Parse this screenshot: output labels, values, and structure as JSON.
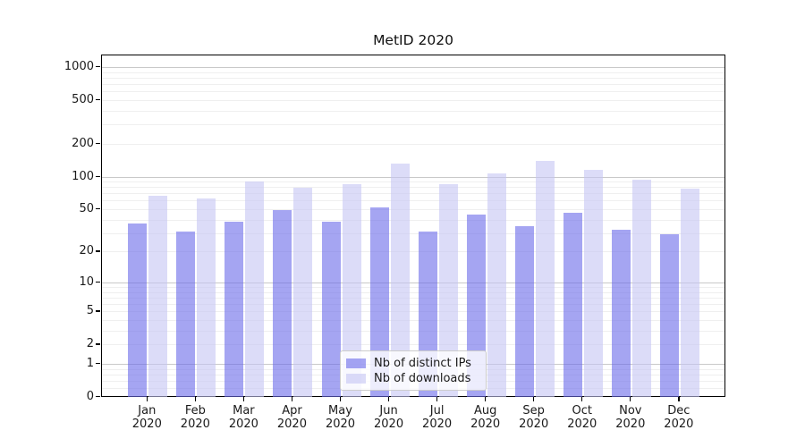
{
  "title": "MetID 2020",
  "chart_data": {
    "type": "bar",
    "title": "MetID 2020",
    "yscale": "symlog",
    "grid": true,
    "legend_position": "lower-center",
    "categories": [
      "Jan 2020",
      "Feb 2020",
      "Mar 2020",
      "Apr 2020",
      "May 2020",
      "Jun 2020",
      "Jul 2020",
      "Aug 2020",
      "Sep 2020",
      "Oct 2020",
      "Nov 2020",
      "Dec 2020"
    ],
    "series": [
      {
        "name": "Nb of distinct IPs",
        "color": "#a5a5f2",
        "values": [
          37,
          31,
          38,
          49,
          38,
          52,
          31,
          45,
          35,
          46,
          32,
          29
        ]
      },
      {
        "name": "Nb of downloads",
        "color": "#dcdcf8",
        "values": [
          66,
          63,
          90,
          79,
          86,
          132,
          86,
          107,
          138,
          115,
          93,
          77
        ]
      }
    ],
    "y_ticks": [
      0,
      1,
      2,
      5,
      10,
      20,
      50,
      100,
      200,
      500,
      1000
    ],
    "ylim": [
      0,
      1300
    ],
    "colors": {
      "grid_major": "#c9c9c9",
      "grid_minor": "#efefef",
      "axis": "#000000",
      "text": "#1a1a1a",
      "legend_border": "#cccccc"
    }
  }
}
